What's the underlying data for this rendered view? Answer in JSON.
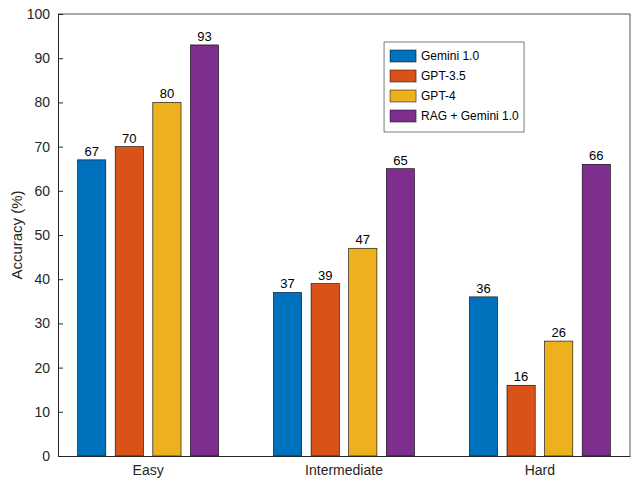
{
  "chart_data": {
    "type": "bar",
    "y_label": "Accuracy (%)",
    "categories": [
      "Easy",
      "Intermediate",
      "Hard"
    ],
    "series": [
      {
        "name": "Gemini 1.0",
        "color": "#0072bd",
        "values": [
          67,
          37,
          36
        ]
      },
      {
        "name": "GPT-3.5",
        "color": "#d95319",
        "values": [
          70,
          39,
          16
        ]
      },
      {
        "name": "GPT-4",
        "color": "#edb120",
        "values": [
          80,
          47,
          26
        ]
      },
      {
        "name": "RAG + Gemini 1.0",
        "color": "#7e2f8e",
        "values": [
          93,
          65,
          66
        ]
      }
    ],
    "ylim": [
      0,
      100
    ],
    "yticks": [
      0,
      10,
      20,
      30,
      40,
      50,
      60,
      70,
      80,
      90,
      100
    ],
    "grid": false,
    "data_labels": true,
    "legend": "top-right"
  }
}
